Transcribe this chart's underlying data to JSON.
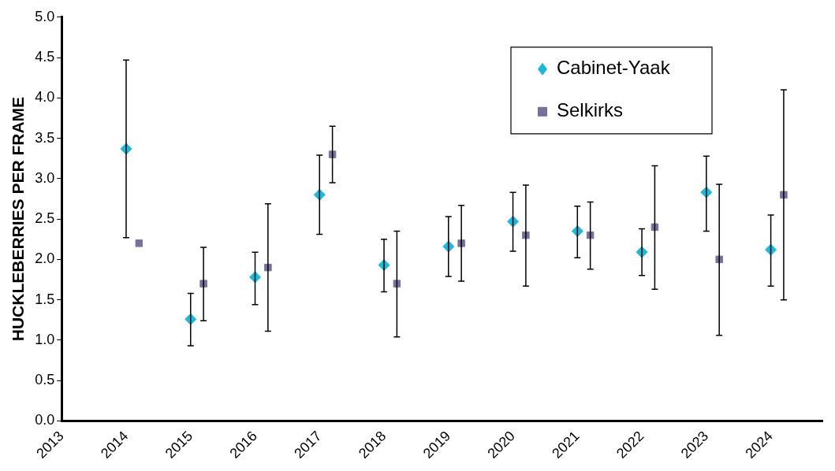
{
  "chart_data": {
    "type": "scatter",
    "ylabel": "HUCKLEBERRIES PER FRAME",
    "xlim": [
      2013,
      2024.8
    ],
    "xticks": [
      2013,
      2014,
      2015,
      2016,
      2017,
      2018,
      2019,
      2020,
      2021,
      2022,
      2023,
      2024
    ],
    "ylim": [
      0,
      5
    ],
    "yticks": [
      {
        "value": 0,
        "label": "0.0"
      },
      {
        "value": 0.5,
        "label": "0.5"
      },
      {
        "value": 1,
        "label": "1.0"
      },
      {
        "value": 1.5,
        "label": "1.5"
      },
      {
        "value": 2,
        "label": "2.0"
      },
      {
        "value": 2.5,
        "label": "2.5"
      },
      {
        "value": 3,
        "label": "3.0"
      },
      {
        "value": 3.5,
        "label": "3.5"
      },
      {
        "value": 4,
        "label": "4.0"
      },
      {
        "value": 4.5,
        "label": "4.5"
      },
      {
        "value": 5,
        "label": "5.0"
      }
    ],
    "grid": false,
    "legend": "top right",
    "series": [
      {
        "name": "Cabinet-Yaak",
        "color": "#1fb8d8",
        "marker": "diamond",
        "x": [
          2014,
          2015,
          2016,
          2017,
          2018,
          2019,
          2020,
          2021,
          2022,
          2023,
          2024
        ],
        "values": [
          3.37,
          1.26,
          1.78,
          2.8,
          1.93,
          2.16,
          2.47,
          2.35,
          2.09,
          2.83,
          2.12
        ],
        "errors": [
          [
            2.27,
            4.47
          ],
          [
            0.93,
            1.58
          ],
          [
            1.44,
            2.09
          ],
          [
            2.31,
            3.29
          ],
          [
            1.6,
            2.25
          ],
          [
            1.79,
            2.53
          ],
          [
            2.1,
            2.83
          ],
          [
            2.02,
            2.66
          ],
          [
            1.8,
            2.38
          ],
          [
            2.35,
            3.28
          ],
          [
            1.67,
            2.55
          ]
        ]
      },
      {
        "name": "Selkirks",
        "color": "#7a6f9b",
        "marker": "square",
        "x": [
          2014.2,
          2015.2,
          2016.2,
          2017.2,
          2018.2,
          2019.2,
          2020.2,
          2021.2,
          2022.2,
          2023.2,
          2024.2
        ],
        "values": [
          2.2,
          1.7,
          1.9,
          3.3,
          1.7,
          2.2,
          2.3,
          2.3,
          2.4,
          2.0,
          2.8
        ],
        "errors": [
          null,
          [
            1.24,
            2.15
          ],
          [
            1.11,
            2.69
          ],
          [
            2.95,
            3.65
          ],
          [
            1.04,
            2.35
          ],
          [
            1.73,
            2.67
          ],
          [
            1.67,
            2.92
          ],
          [
            1.88,
            2.71
          ],
          [
            1.63,
            3.16
          ],
          [
            1.06,
            2.93
          ],
          [
            1.5,
            4.1
          ]
        ]
      }
    ]
  }
}
